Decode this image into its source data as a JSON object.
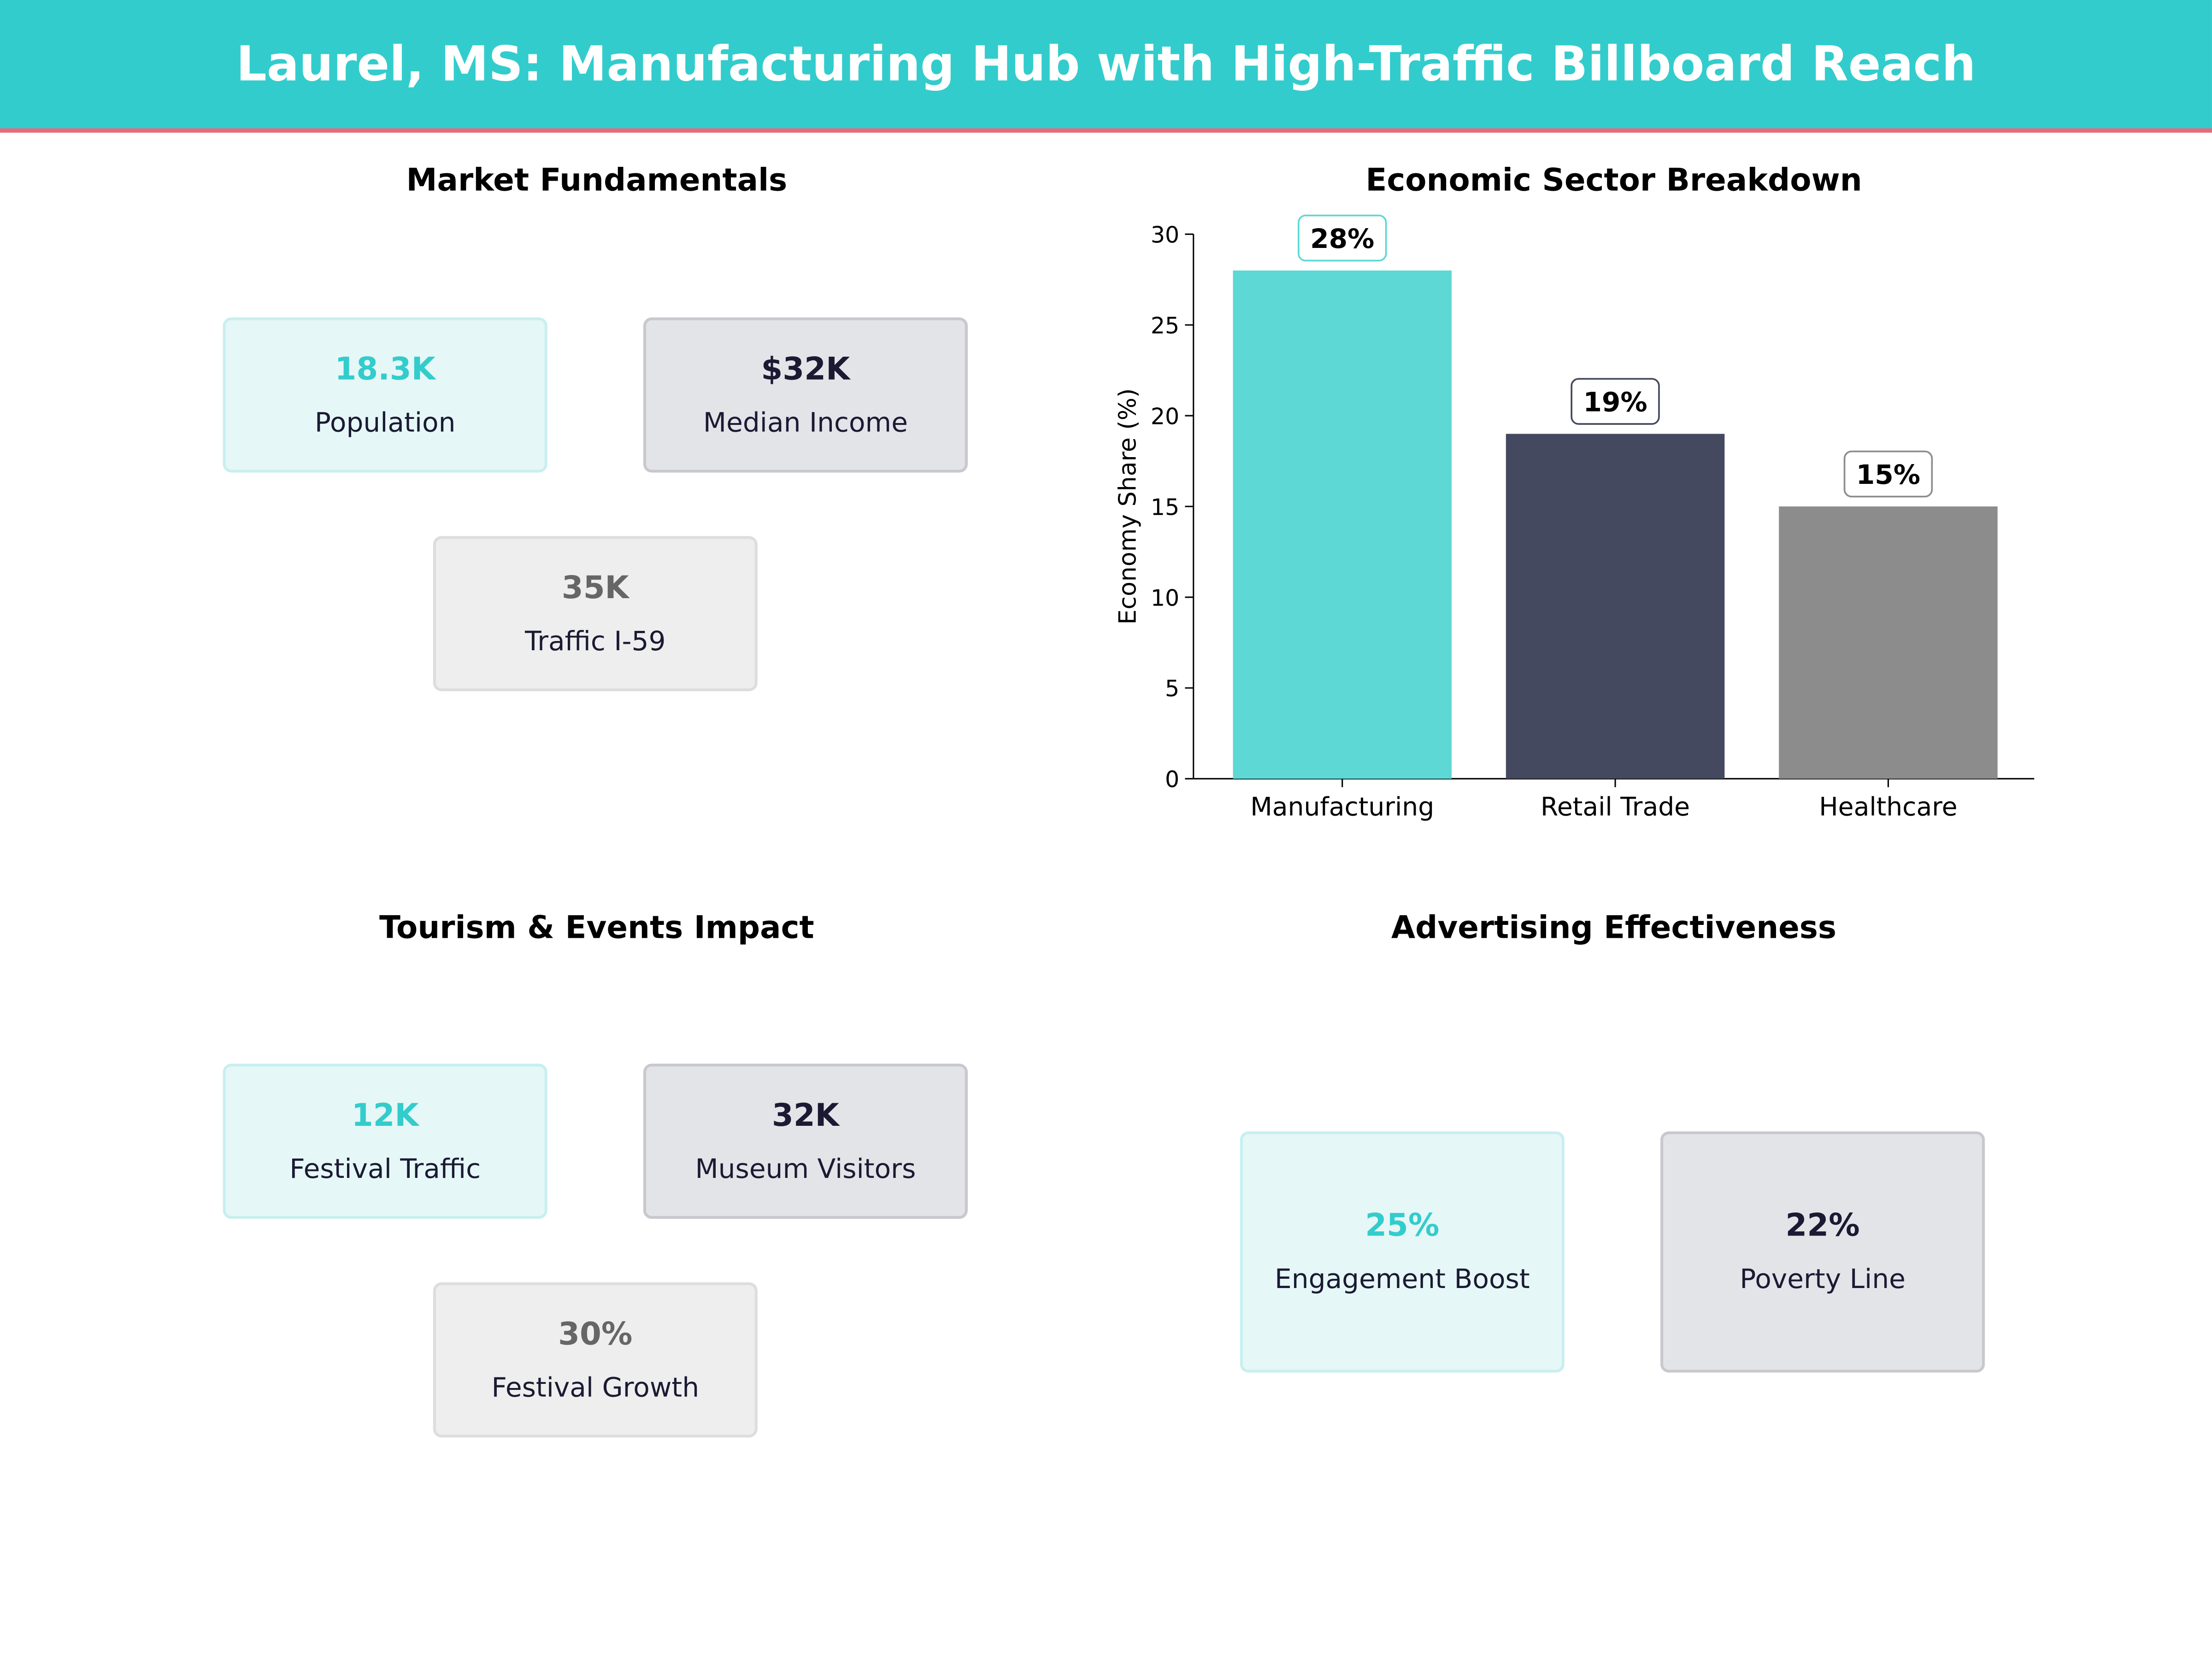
{
  "title": "Laurel, MS: Manufacturing Hub with High-Traffic Billboard Reach",
  "colors": {
    "header": "#33CCCC",
    "accent_line": "#EE6677"
  },
  "market": {
    "title": "Market Fundamentals",
    "cards": [
      {
        "value": "18.3K",
        "label": "Population"
      },
      {
        "value": "$32K",
        "label": "Median Income"
      },
      {
        "value": "35K",
        "label": "Traffic I-59"
      }
    ]
  },
  "tourism": {
    "title": "Tourism & Events Impact",
    "cards": [
      {
        "value": "12K",
        "label": "Festival Traffic"
      },
      {
        "value": "32K",
        "label": "Museum Visitors"
      },
      {
        "value": "30%",
        "label": "Festival Growth"
      }
    ]
  },
  "advertising": {
    "title": "Advertising Effectiveness",
    "cards": [
      {
        "value": "25%",
        "label": "Engagement Boost"
      },
      {
        "value": "22%",
        "label": "Poverty Line"
      }
    ]
  },
  "chart_data": {
    "type": "bar",
    "title": "Economic Sector Breakdown",
    "xlabel": "",
    "ylabel": "Economy Share (%)",
    "categories": [
      "Manufacturing",
      "Retail Trade",
      "Healthcare"
    ],
    "values": [
      28,
      19,
      15
    ],
    "data_labels": [
      "28%",
      "19%",
      "15%"
    ],
    "colors": [
      "#5DD8D5",
      "#45495F",
      "#8C8C8C"
    ],
    "ylim": [
      0,
      30
    ],
    "yticks": [
      0,
      5,
      10,
      15,
      20,
      25,
      30
    ],
    "grid": false
  }
}
